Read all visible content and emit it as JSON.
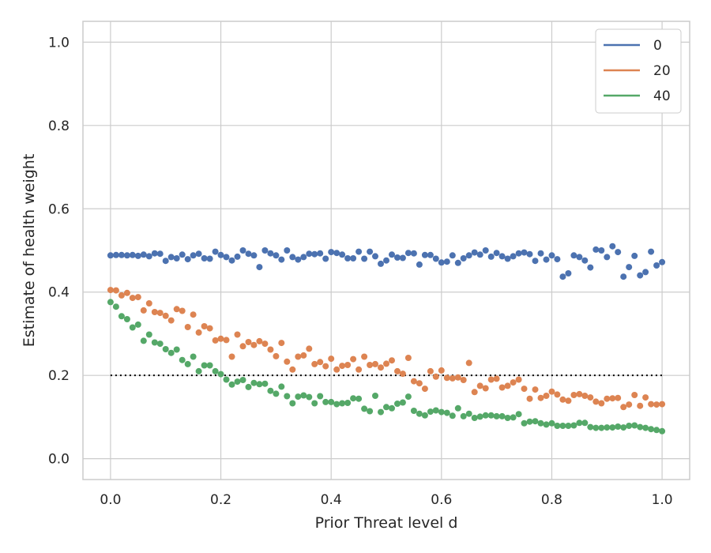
{
  "chart_data": {
    "type": "scatter",
    "title": "",
    "xlabel": "Prior Threat level d",
    "ylabel": "Estimate of health weight",
    "xlim": [
      -0.05,
      1.05
    ],
    "ylim": [
      -0.05,
      1.05
    ],
    "xticks": [
      0.0,
      0.2,
      0.4,
      0.6,
      0.8,
      1.0
    ],
    "yticks": [
      0.0,
      0.2,
      0.4,
      0.6,
      0.8,
      1.0
    ],
    "xtick_labels": [
      "0.0",
      "0.2",
      "0.4",
      "0.6",
      "0.8",
      "1.0"
    ],
    "ytick_labels": [
      "0.0",
      "0.2",
      "0.4",
      "0.6",
      "0.8",
      "1.0"
    ],
    "grid": true,
    "legend_position": "top-right",
    "reference_line": {
      "y": 0.2,
      "x_range": [
        0.0,
        1.0
      ],
      "style": "dotted",
      "color": "#000000"
    },
    "series": [
      {
        "name": "0",
        "color": "#4c72b0",
        "x_range": [
          0.0,
          1.0
        ],
        "y": [
          0.488,
          0.489,
          0.489,
          0.488,
          0.489,
          0.487,
          0.49,
          0.486,
          0.493,
          0.492,
          0.475,
          0.484,
          0.481,
          0.49,
          0.479,
          0.488,
          0.492,
          0.481,
          0.48,
          0.497,
          0.489,
          0.484,
          0.476,
          0.485,
          0.5,
          0.492,
          0.488,
          0.46,
          0.5,
          0.493,
          0.488,
          0.478,
          0.5,
          0.484,
          0.478,
          0.484,
          0.492,
          0.491,
          0.493,
          0.48,
          0.496,
          0.494,
          0.49,
          0.481,
          0.481,
          0.497,
          0.48,
          0.497,
          0.486,
          0.468,
          0.476,
          0.49,
          0.483,
          0.482,
          0.494,
          0.493,
          0.466,
          0.489,
          0.489,
          0.48,
          0.471,
          0.473,
          0.488,
          0.47,
          0.481,
          0.488,
          0.495,
          0.49,
          0.5,
          0.485,
          0.494,
          0.486,
          0.48,
          0.486,
          0.493,
          0.495,
          0.491,
          0.475,
          0.493,
          0.478,
          0.488,
          0.479,
          0.437,
          0.445,
          0.488,
          0.484,
          0.476,
          0.459,
          0.502,
          0.5,
          0.484,
          0.51,
          0.496,
          0.437,
          0.46,
          0.487,
          0.44,
          0.448,
          0.497,
          0.464,
          0.472
        ]
      },
      {
        "name": "20",
        "color": "#dd8452",
        "x_range": [
          0.0,
          1.0
        ],
        "y": [
          0.405,
          0.404,
          0.392,
          0.398,
          0.386,
          0.388,
          0.356,
          0.373,
          0.352,
          0.35,
          0.343,
          0.332,
          0.359,
          0.355,
          0.316,
          0.346,
          0.303,
          0.318,
          0.313,
          0.284,
          0.288,
          0.285,
          0.245,
          0.298,
          0.27,
          0.28,
          0.273,
          0.282,
          0.276,
          0.262,
          0.246,
          0.278,
          0.233,
          0.214,
          0.245,
          0.248,
          0.264,
          0.227,
          0.232,
          0.222,
          0.24,
          0.214,
          0.223,
          0.225,
          0.239,
          0.214,
          0.245,
          0.225,
          0.227,
          0.219,
          0.228,
          0.236,
          0.21,
          0.204,
          0.242,
          0.186,
          0.181,
          0.168,
          0.21,
          0.197,
          0.212,
          0.194,
          0.193,
          0.195,
          0.189,
          0.23,
          0.16,
          0.175,
          0.169,
          0.19,
          0.192,
          0.171,
          0.175,
          0.183,
          0.19,
          0.168,
          0.144,
          0.166,
          0.146,
          0.151,
          0.161,
          0.154,
          0.142,
          0.139,
          0.153,
          0.155,
          0.151,
          0.147,
          0.137,
          0.133,
          0.144,
          0.145,
          0.146,
          0.124,
          0.13,
          0.153,
          0.127,
          0.147,
          0.131,
          0.13,
          0.131
        ]
      },
      {
        "name": "40",
        "color": "#55a868",
        "x_range": [
          0.0,
          1.0
        ],
        "y": [
          0.376,
          0.365,
          0.342,
          0.335,
          0.315,
          0.322,
          0.283,
          0.298,
          0.279,
          0.276,
          0.263,
          0.254,
          0.262,
          0.237,
          0.227,
          0.245,
          0.21,
          0.224,
          0.224,
          0.21,
          0.203,
          0.19,
          0.178,
          0.185,
          0.189,
          0.172,
          0.182,
          0.179,
          0.18,
          0.163,
          0.156,
          0.173,
          0.15,
          0.133,
          0.149,
          0.152,
          0.148,
          0.133,
          0.15,
          0.136,
          0.136,
          0.131,
          0.133,
          0.134,
          0.145,
          0.144,
          0.12,
          0.114,
          0.151,
          0.112,
          0.124,
          0.121,
          0.132,
          0.135,
          0.149,
          0.115,
          0.108,
          0.104,
          0.113,
          0.116,
          0.112,
          0.11,
          0.103,
          0.121,
          0.102,
          0.108,
          0.098,
          0.101,
          0.104,
          0.104,
          0.102,
          0.102,
          0.098,
          0.099,
          0.107,
          0.085,
          0.089,
          0.09,
          0.085,
          0.082,
          0.085,
          0.079,
          0.079,
          0.079,
          0.08,
          0.086,
          0.086,
          0.076,
          0.074,
          0.074,
          0.075,
          0.075,
          0.077,
          0.075,
          0.079,
          0.08,
          0.076,
          0.074,
          0.071,
          0.069,
          0.066
        ]
      }
    ]
  }
}
